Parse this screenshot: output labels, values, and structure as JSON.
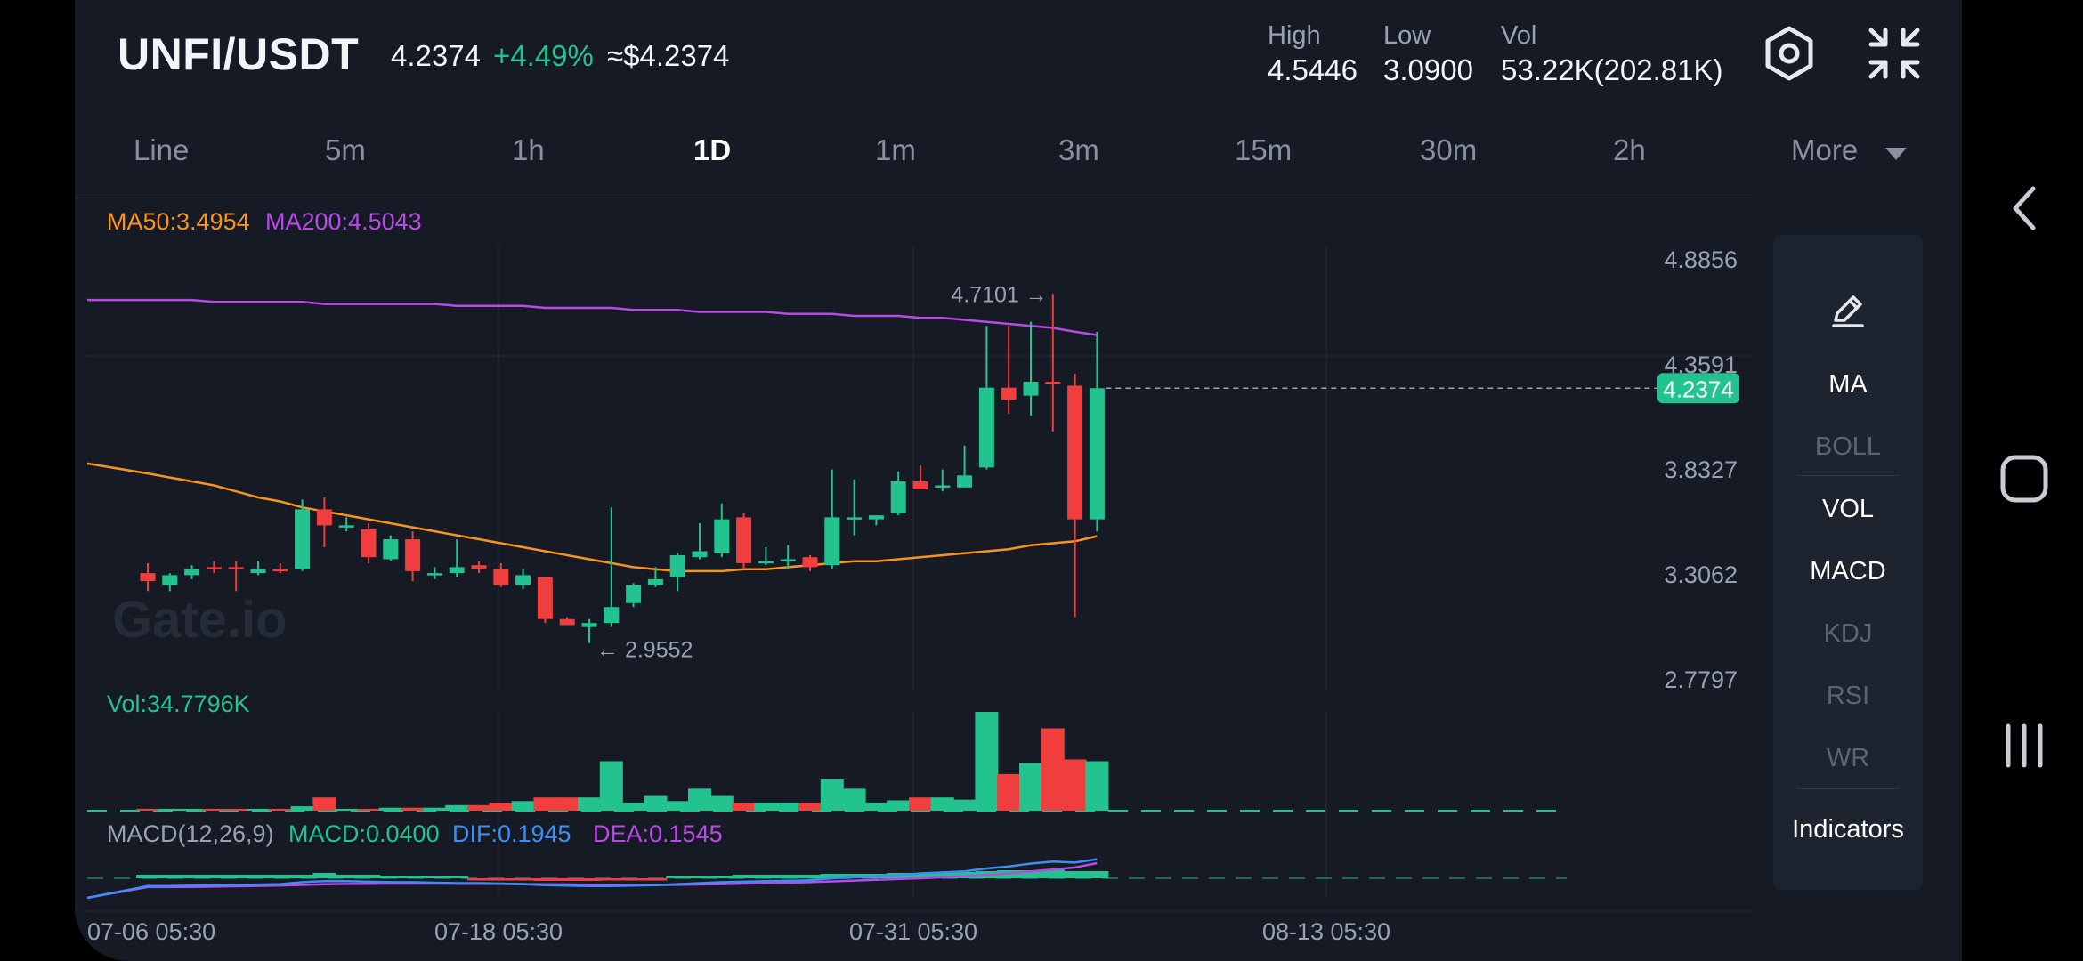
{
  "header": {
    "pair": "UNFI/USDT",
    "price": "4.2374",
    "change": "+4.49%",
    "usd_price": "≈$4.2374",
    "high_label": "High",
    "high_value": "4.5446",
    "low_label": "Low",
    "low_value": "3.0900",
    "vol_label": "Vol",
    "vol_value": "53.22K(202.81K)",
    "icons": [
      "settings-icon",
      "collapse-icon"
    ]
  },
  "tabs": [
    "Line",
    "5m",
    "1h",
    "1D",
    "1m",
    "3m",
    "15m",
    "30m",
    "2h"
  ],
  "active_tab": "1D",
  "more_label": "More",
  "ma_legend": {
    "ma50": "MA50:3.4954",
    "ma200": "MA200:4.5043"
  },
  "vol_legend": "Vol:34.7796K",
  "macd_legend": {
    "title": "MACD(12,26,9)",
    "macd": "MACD:0.0400",
    "dif": "DIF:0.1945",
    "dea": "DEA:0.1545"
  },
  "watermark": "Gate.io",
  "price_axis": [
    "4.8856",
    "4.3591",
    "3.8327",
    "3.3062",
    "2.7797"
  ],
  "current_price_tag": "4.2374",
  "max_marker": "4.7101 →",
  "min_marker": "← 2.9552",
  "date_axis": [
    "07-06 05:30",
    "07-18 05:30",
    "07-31 05:30",
    "08-13 05:30"
  ],
  "panel": {
    "edit_icon": "pencil-icon",
    "items": [
      {
        "label": "MA",
        "active": true
      },
      {
        "label": "BOLL",
        "active": false
      },
      {
        "label": "VOL",
        "active": true
      },
      {
        "label": "MACD",
        "active": true
      },
      {
        "label": "KDJ",
        "active": false
      },
      {
        "label": "RSI",
        "active": false
      },
      {
        "label": "WR",
        "active": false
      }
    ],
    "indicators_label": "Indicators"
  },
  "colors": {
    "up": "#22c38e",
    "down": "#f03e3e",
    "ma50": "#f7931e",
    "ma200": "#b84be6",
    "dif": "#3d8df5",
    "dea": "#b84be6"
  },
  "chart_data": {
    "type": "candlestick",
    "y_range": [
      2.7797,
      4.8856
    ],
    "candles": [
      {
        "o": 3.31,
        "h": 3.36,
        "l": 3.22,
        "c": 3.27
      },
      {
        "o": 3.25,
        "h": 3.31,
        "l": 3.22,
        "c": 3.3
      },
      {
        "o": 3.3,
        "h": 3.35,
        "l": 3.28,
        "c": 3.33
      },
      {
        "o": 3.34,
        "h": 3.37,
        "l": 3.31,
        "c": 3.33
      },
      {
        "o": 3.34,
        "h": 3.37,
        "l": 3.22,
        "c": 3.33
      },
      {
        "o": 3.31,
        "h": 3.37,
        "l": 3.3,
        "c": 3.33
      },
      {
        "o": 3.33,
        "h": 3.36,
        "l": 3.31,
        "c": 3.32
      },
      {
        "o": 3.33,
        "h": 3.68,
        "l": 3.32,
        "c": 3.63
      },
      {
        "o": 3.63,
        "h": 3.69,
        "l": 3.44,
        "c": 3.55
      },
      {
        "o": 3.55,
        "h": 3.59,
        "l": 3.52,
        "c": 3.55
      },
      {
        "o": 3.53,
        "h": 3.56,
        "l": 3.36,
        "c": 3.39
      },
      {
        "o": 3.38,
        "h": 3.5,
        "l": 3.37,
        "c": 3.48
      },
      {
        "o": 3.48,
        "h": 3.52,
        "l": 3.27,
        "c": 3.32
      },
      {
        "o": 3.31,
        "h": 3.34,
        "l": 3.28,
        "c": 3.31
      },
      {
        "o": 3.31,
        "h": 3.48,
        "l": 3.29,
        "c": 3.34
      },
      {
        "o": 3.35,
        "h": 3.37,
        "l": 3.31,
        "c": 3.33
      },
      {
        "o": 3.33,
        "h": 3.36,
        "l": 3.24,
        "c": 3.25
      },
      {
        "o": 3.25,
        "h": 3.33,
        "l": 3.23,
        "c": 3.3
      },
      {
        "o": 3.29,
        "h": 3.29,
        "l": 3.06,
        "c": 3.08
      },
      {
        "o": 3.08,
        "h": 3.09,
        "l": 3.05,
        "c": 3.05
      },
      {
        "o": 3.04,
        "h": 3.08,
        "l": 2.96,
        "c": 3.06
      },
      {
        "o": 3.06,
        "h": 3.64,
        "l": 3.04,
        "c": 3.14
      },
      {
        "o": 3.16,
        "h": 3.26,
        "l": 3.14,
        "c": 3.25
      },
      {
        "o": 3.25,
        "h": 3.34,
        "l": 3.24,
        "c": 3.28
      },
      {
        "o": 3.29,
        "h": 3.41,
        "l": 3.22,
        "c": 3.4
      },
      {
        "o": 3.39,
        "h": 3.56,
        "l": 3.38,
        "c": 3.42
      },
      {
        "o": 3.41,
        "h": 3.66,
        "l": 3.39,
        "c": 3.58
      },
      {
        "o": 3.59,
        "h": 3.61,
        "l": 3.33,
        "c": 3.36
      },
      {
        "o": 3.36,
        "h": 3.44,
        "l": 3.35,
        "c": 3.37
      },
      {
        "o": 3.37,
        "h": 3.45,
        "l": 3.33,
        "c": 3.38
      },
      {
        "o": 3.39,
        "h": 3.4,
        "l": 3.32,
        "c": 3.34
      },
      {
        "o": 3.35,
        "h": 3.83,
        "l": 3.33,
        "c": 3.59
      },
      {
        "o": 3.59,
        "h": 3.78,
        "l": 3.5,
        "c": 3.59
      },
      {
        "o": 3.58,
        "h": 3.6,
        "l": 3.55,
        "c": 3.6
      },
      {
        "o": 3.61,
        "h": 3.82,
        "l": 3.6,
        "c": 3.77
      },
      {
        "o": 3.77,
        "h": 3.85,
        "l": 3.73,
        "c": 3.73
      },
      {
        "o": 3.74,
        "h": 3.83,
        "l": 3.72,
        "c": 3.75
      },
      {
        "o": 3.74,
        "h": 3.95,
        "l": 3.74,
        "c": 3.8
      },
      {
        "o": 3.84,
        "h": 4.55,
        "l": 3.83,
        "c": 4.24
      },
      {
        "o": 4.24,
        "h": 4.55,
        "l": 4.11,
        "c": 4.18
      },
      {
        "o": 4.2,
        "h": 4.57,
        "l": 4.1,
        "c": 4.27
      },
      {
        "o": 4.27,
        "h": 4.71,
        "l": 4.02,
        "c": 4.26
      },
      {
        "o": 4.25,
        "h": 4.31,
        "l": 3.09,
        "c": 3.58
      },
      {
        "o": 3.58,
        "h": 4.52,
        "l": 3.52,
        "c": 4.2374
      }
    ],
    "ma50": [
      3.81,
      3.79,
      3.77,
      3.75,
      3.72,
      3.69,
      3.67,
      3.64,
      3.62,
      3.6,
      3.58,
      3.56,
      3.54,
      3.52,
      3.5,
      3.48,
      3.46,
      3.44,
      3.42,
      3.4,
      3.38,
      3.36,
      3.34,
      3.33,
      3.32,
      3.32,
      3.32,
      3.33,
      3.33,
      3.34,
      3.35,
      3.36,
      3.37,
      3.37,
      3.38,
      3.39,
      3.4,
      3.41,
      3.42,
      3.43,
      3.45,
      3.46,
      3.47,
      3.4954
    ],
    "ma200": [
      4.68,
      4.68,
      4.68,
      4.67,
      4.67,
      4.67,
      4.67,
      4.67,
      4.66,
      4.66,
      4.66,
      4.66,
      4.66,
      4.66,
      4.65,
      4.65,
      4.65,
      4.65,
      4.64,
      4.64,
      4.64,
      4.64,
      4.63,
      4.63,
      4.63,
      4.62,
      4.62,
      4.62,
      4.62,
      4.61,
      4.61,
      4.61,
      4.6,
      4.6,
      4.6,
      4.59,
      4.59,
      4.58,
      4.57,
      4.56,
      4.55,
      4.54,
      4.52,
      4.5043
    ],
    "volume": [
      0.5,
      0.5,
      0.5,
      0.5,
      0.5,
      0.5,
      0.5,
      1.2,
      3.6,
      0.5,
      0.5,
      0.8,
      0.8,
      0.8,
      1.5,
      1.5,
      2.2,
      2.6,
      3.6,
      3.6,
      3.6,
      13.5,
      2.2,
      4.0,
      2.6,
      6.0,
      4.0,
      2.2,
      2.2,
      2.2,
      2.2,
      8.5,
      6.0,
      2.2,
      2.8,
      3.6,
      3.6,
      3.0,
      27.0,
      10.0,
      13.0,
      22.5,
      14.0,
      13.5
    ],
    "macd_hist": [
      0.02,
      0.02,
      0.02,
      0.02,
      0.02,
      0.02,
      0.02,
      0.02,
      0.03,
      0.02,
      0.02,
      0.015,
      0.015,
      0.01,
      0.005,
      -0.005,
      -0.01,
      -0.01,
      -0.015,
      -0.015,
      -0.015,
      -0.01,
      -0.01,
      -0.005,
      0.01,
      0.01,
      0.015,
      0.02,
      0.02,
      0.02,
      0.02,
      0.025,
      0.025,
      0.025,
      0.03,
      0.03,
      0.03,
      0.035,
      0.04,
      0.045,
      0.045,
      0.05,
      0.04,
      0.04
    ],
    "dif": [
      -0.08,
      -0.08,
      -0.075,
      -0.07,
      -0.07,
      -0.065,
      -0.06,
      -0.04,
      -0.03,
      -0.03,
      -0.035,
      -0.04,
      -0.04,
      -0.045,
      -0.05,
      -0.05,
      -0.055,
      -0.06,
      -0.07,
      -0.075,
      -0.08,
      -0.08,
      -0.075,
      -0.07,
      -0.06,
      -0.05,
      -0.04,
      -0.035,
      -0.03,
      -0.025,
      -0.02,
      0.0,
      0.01,
      0.02,
      0.03,
      0.05,
      0.06,
      0.07,
      0.1,
      0.12,
      0.15,
      0.17,
      0.16,
      0.1945
    ],
    "dea": [
      -0.09,
      -0.09,
      -0.088,
      -0.085,
      -0.082,
      -0.078,
      -0.074,
      -0.068,
      -0.062,
      -0.058,
      -0.056,
      -0.055,
      -0.055,
      -0.055,
      -0.056,
      -0.057,
      -0.058,
      -0.06,
      -0.062,
      -0.064,
      -0.066,
      -0.068,
      -0.069,
      -0.069,
      -0.067,
      -0.064,
      -0.06,
      -0.055,
      -0.05,
      -0.045,
      -0.04,
      -0.032,
      -0.024,
      -0.016,
      -0.008,
      0.0,
      0.01,
      0.02,
      0.035,
      0.05,
      0.07,
      0.09,
      0.11,
      0.1545
    ]
  }
}
